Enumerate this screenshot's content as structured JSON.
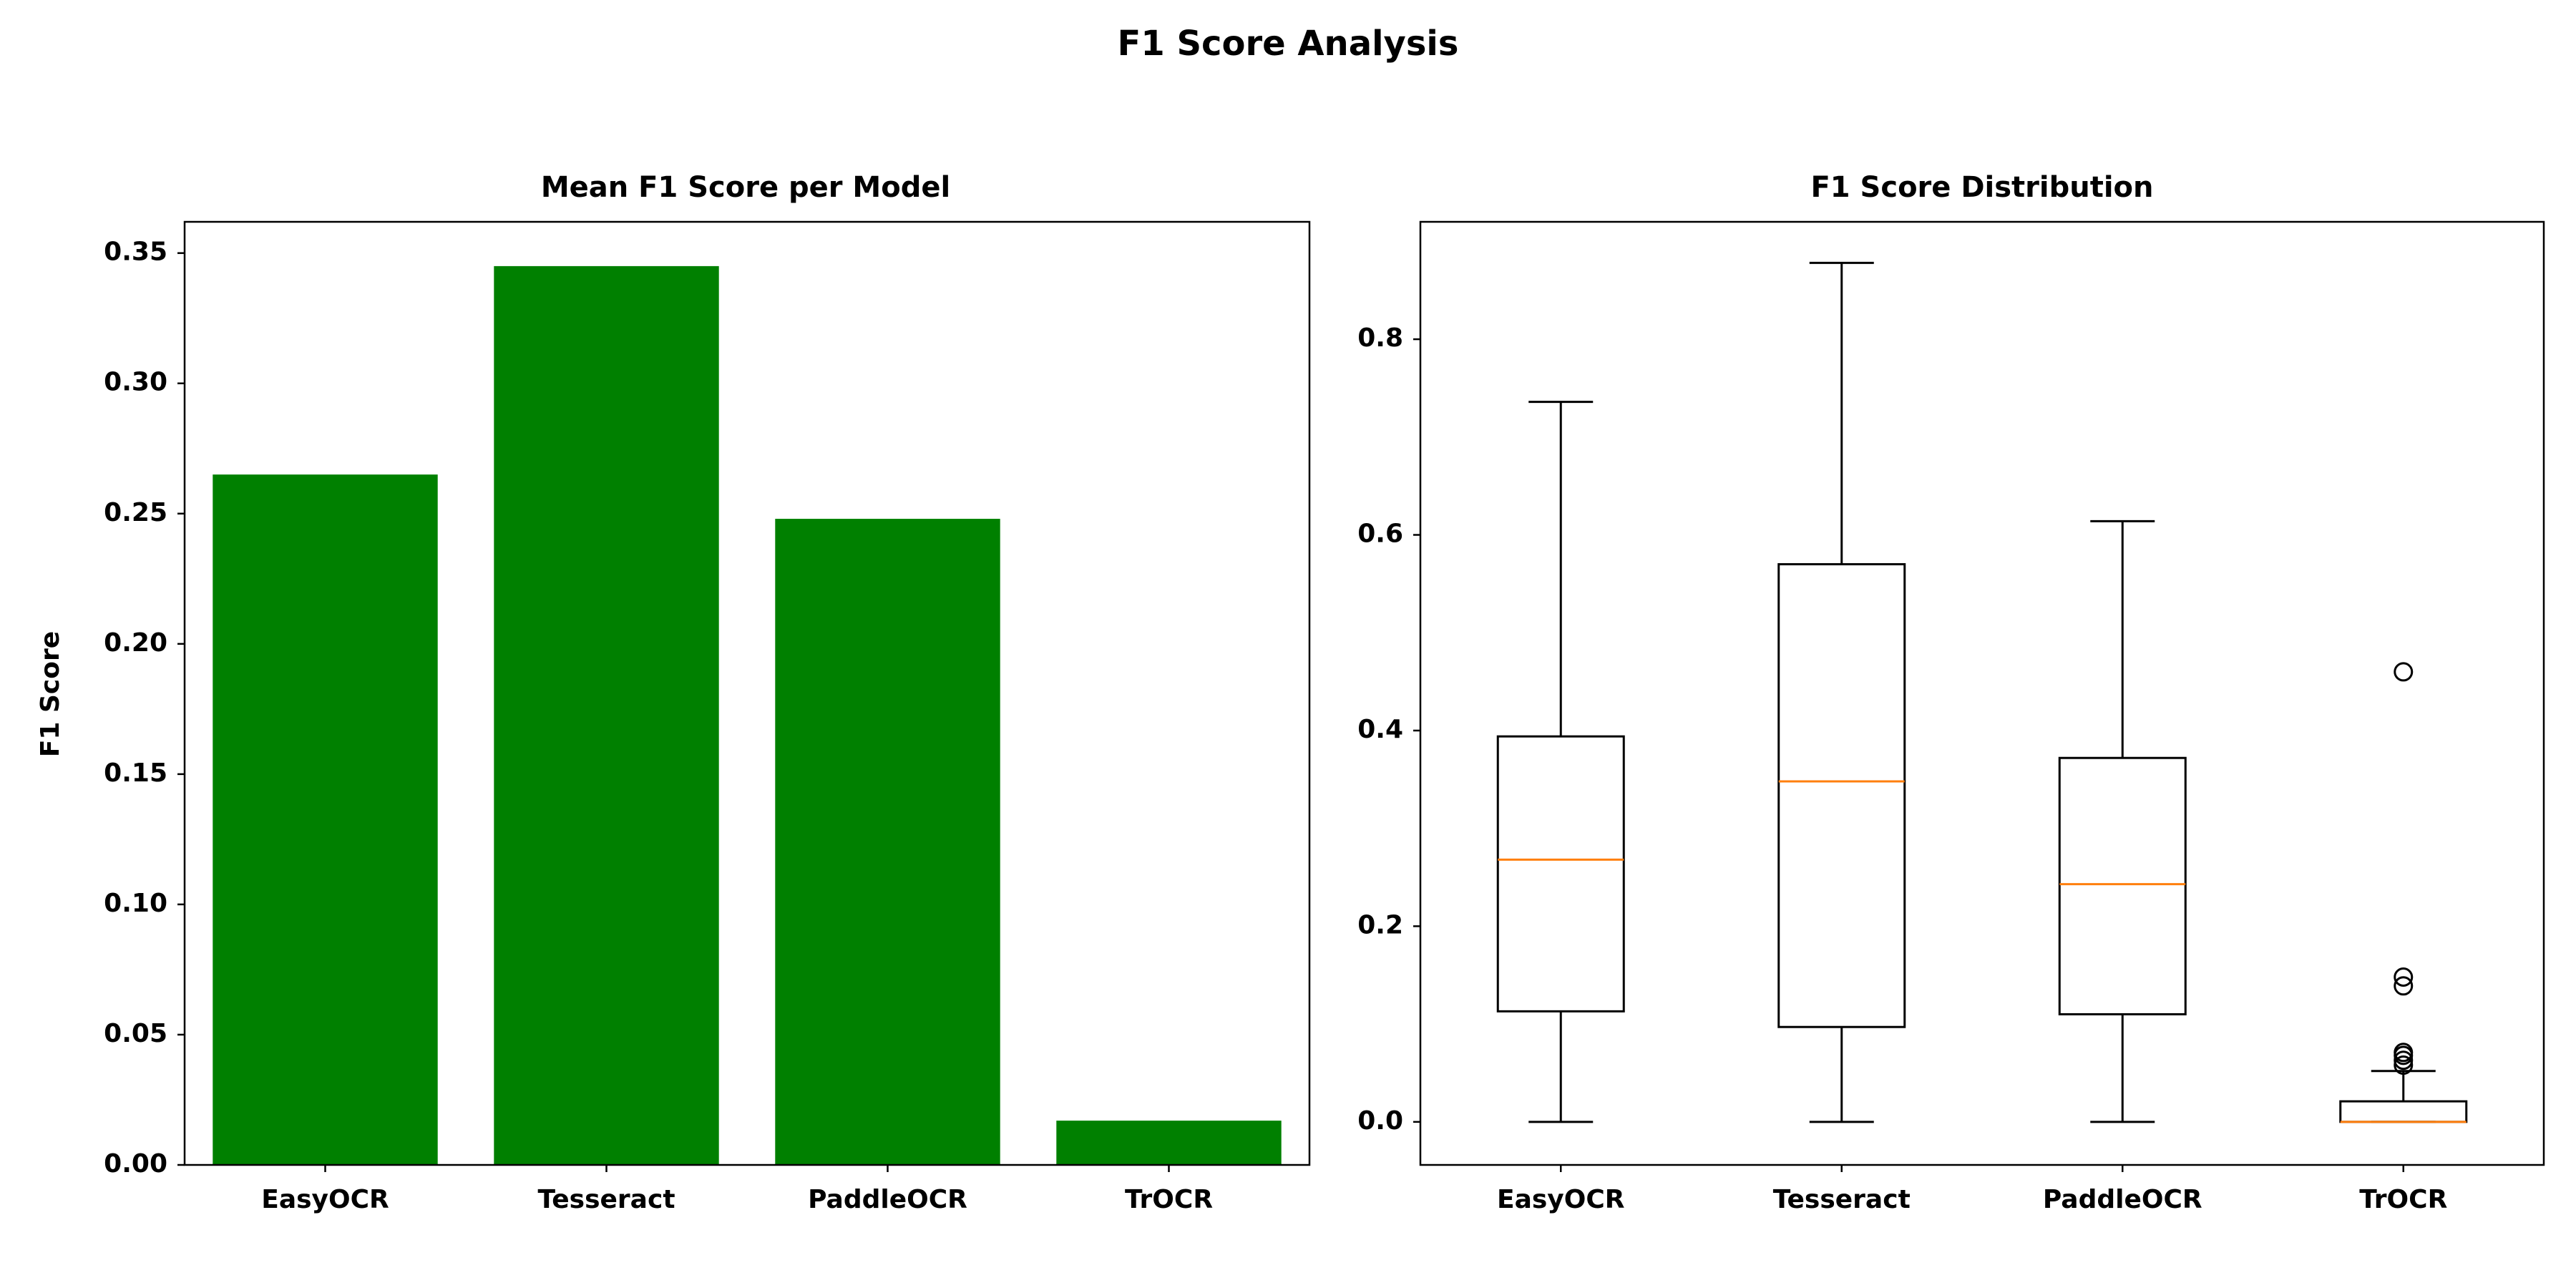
{
  "title": "F1 Score Analysis",
  "colors": {
    "bar": "#008000",
    "median": "#ff7f0e",
    "box": "#000000"
  },
  "chart_data": [
    {
      "type": "bar",
      "title": "Mean F1 Score per Model",
      "ylabel": "F1 Score",
      "xlabel": "",
      "categories": [
        "EasyOCR",
        "Tesseract",
        "PaddleOCR",
        "TrOCR"
      ],
      "values": [
        0.265,
        0.345,
        0.248,
        0.017
      ],
      "ylim": [
        0,
        0.362
      ],
      "yticks": [
        "0.00",
        "0.05",
        "0.10",
        "0.15",
        "0.20",
        "0.25",
        "0.30",
        "0.35"
      ],
      "grid": false
    },
    {
      "type": "box",
      "title": "F1 Score Distribution",
      "xlabel": "",
      "ylabel": "",
      "categories": [
        "EasyOCR",
        "Tesseract",
        "PaddleOCR",
        "TrOCR"
      ],
      "ylim": [
        -0.044,
        0.92
      ],
      "yticks": [
        "0.0",
        "0.2",
        "0.4",
        "0.6",
        "0.8"
      ],
      "grid": false,
      "boxes": [
        {
          "name": "EasyOCR",
          "whisker_low": 0.0,
          "q1": 0.113,
          "median": 0.268,
          "q3": 0.394,
          "whisker_high": 0.736,
          "outliers": []
        },
        {
          "name": "Tesseract",
          "whisker_low": 0.0,
          "q1": 0.097,
          "median": 0.348,
          "q3": 0.57,
          "whisker_high": 0.878,
          "outliers": []
        },
        {
          "name": "PaddleOCR",
          "whisker_low": 0.0,
          "q1": 0.11,
          "median": 0.243,
          "q3": 0.372,
          "whisker_high": 0.614,
          "outliers": []
        },
        {
          "name": "TrOCR",
          "whisker_low": 0.0,
          "q1": 0.0,
          "median": 0.0,
          "q3": 0.021,
          "whisker_high": 0.052,
          "outliers": [
            0.058,
            0.063,
            0.068,
            0.071,
            0.139,
            0.148,
            0.46
          ]
        }
      ]
    }
  ]
}
